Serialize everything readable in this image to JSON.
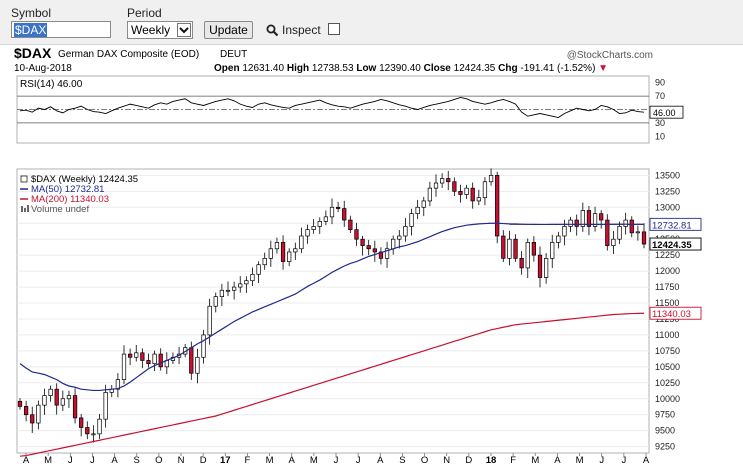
{
  "toolbar": {
    "symbol_label": "Symbol",
    "symbol_value": "$DAX",
    "period_label": "Period",
    "period_value": "Weekly",
    "update_label": "Update",
    "inspect_label": "Inspect"
  },
  "header": {
    "symbol": "$DAX",
    "name": "German DAX Composite (EOD)",
    "exchange": "DEUT",
    "date": "10-Aug-2018",
    "watermark": "@StockCharts.com",
    "ohlc_line": [
      {
        "label": "Open",
        "value": "12631.40"
      },
      {
        "label": "High",
        "value": "12738.53"
      },
      {
        "label": "Low",
        "value": "12390.40"
      },
      {
        "label": "Close",
        "value": "12424.35"
      },
      {
        "label": "Chg",
        "value": "-191.41 (-1.52%)"
      }
    ],
    "chg_arrow": "▼"
  },
  "chart_data": [
    {
      "type": "line",
      "title": "RSI(14) 46.00",
      "series": [
        {
          "name": "RSI(14)",
          "values": [
            48,
            49,
            46,
            52,
            50,
            54,
            48,
            45,
            50,
            52,
            55,
            50,
            47,
            46,
            44,
            48,
            52,
            55,
            58,
            56,
            54,
            52,
            57,
            60,
            58,
            62,
            64,
            66,
            60,
            58,
            56,
            59,
            62,
            64,
            66,
            63,
            58,
            55,
            53,
            58,
            60,
            57,
            55,
            53,
            52,
            56,
            58,
            60,
            62,
            64,
            60,
            57,
            55,
            54,
            52,
            55,
            58,
            60,
            62,
            65,
            63,
            60,
            57,
            55,
            52,
            50,
            53,
            56,
            58,
            60,
            62,
            65,
            68,
            66,
            62,
            60,
            58,
            60,
            63,
            65,
            62,
            58,
            46,
            40,
            42,
            44,
            42,
            40,
            38,
            44,
            48,
            52,
            50,
            48,
            50,
            56,
            54,
            50,
            44,
            45,
            49,
            47,
            46
          ]
        }
      ],
      "yticks": [
        10,
        30,
        50,
        70,
        90
      ],
      "ylim": [
        0,
        100
      ],
      "reference_lines": [
        30,
        50,
        70
      ],
      "last_value_label": "46.00"
    },
    {
      "type": "candlestick",
      "legend": [
        {
          "text": "$DAX (Weekly) 12424.35",
          "color": "#000000"
        },
        {
          "text": "MA(50) 12732.81",
          "color": "#1f2a8c"
        },
        {
          "text": "MA(200) 11340.03",
          "color": "#c8102e"
        },
        {
          "text": "Volume undef",
          "color": "#555555"
        }
      ],
      "close_series": [
        9880,
        9750,
        9620,
        9900,
        10050,
        10150,
        9900,
        10000,
        10050,
        9700,
        9550,
        9450,
        9450,
        9680,
        10100,
        10150,
        10300,
        10700,
        10650,
        10720,
        10600,
        10550,
        10700,
        10500,
        10600,
        10650,
        10700,
        10800,
        10400,
        10650,
        11000,
        11450,
        11600,
        11700,
        11700,
        11750,
        11800,
        11850,
        11950,
        12100,
        12200,
        12350,
        12450,
        12150,
        12300,
        12350,
        12550,
        12650,
        12700,
        12780,
        12850,
        13000,
        12980,
        12800,
        12650,
        12500,
        12400,
        12350,
        12300,
        12200,
        12350,
        12500,
        12550,
        12700,
        12900,
        13000,
        13100,
        13300,
        13380,
        13450,
        13400,
        13250,
        13200,
        13300,
        13100,
        13150,
        13400,
        13500,
        12550,
        12200,
        12500,
        12200,
        12050,
        12450,
        12250,
        11900,
        12200,
        12450,
        12550,
        12700,
        12800,
        12700,
        12950,
        12700,
        12900,
        12800,
        12400,
        12500,
        12700,
        12800,
        12600,
        12615,
        12424
      ],
      "ma50": [
        10550,
        10480,
        10420,
        10400,
        10380,
        10340,
        10300,
        10240,
        10200,
        10180,
        10150,
        10140,
        10130,
        10130,
        10140,
        10150,
        10160,
        10200,
        10260,
        10330,
        10400,
        10470,
        10520,
        10560,
        10600,
        10640,
        10680,
        10740,
        10800,
        10860,
        10910,
        10970,
        11030,
        11090,
        11150,
        11210,
        11260,
        11310,
        11360,
        11400,
        11440,
        11480,
        11520,
        11560,
        11600,
        11640,
        11700,
        11760,
        11810,
        11860,
        11920,
        11980,
        12030,
        12080,
        12120,
        12150,
        12190,
        12230,
        12260,
        12290,
        12320,
        12350,
        12380,
        12400,
        12430,
        12460,
        12500,
        12540,
        12580,
        12620,
        12650,
        12680,
        12700,
        12720,
        12730,
        12740,
        12745,
        12750,
        12750,
        12745,
        12740,
        12738,
        12735,
        12733,
        12732,
        12731,
        12731,
        12732,
        12732,
        12733,
        12733,
        12733,
        12733,
        12732,
        12732,
        12733,
        12733,
        12734,
        12735,
        12735,
        12733,
        12734,
        12733
      ],
      "ma200": [
        9100,
        9110,
        9130,
        9150,
        9170,
        9190,
        9210,
        9230,
        9250,
        9270,
        9290,
        9310,
        9330,
        9350,
        9370,
        9390,
        9410,
        9430,
        9450,
        9470,
        9490,
        9510,
        9530,
        9550,
        9570,
        9590,
        9610,
        9630,
        9650,
        9670,
        9690,
        9710,
        9730,
        9760,
        9790,
        9820,
        9850,
        9880,
        9910,
        9940,
        9970,
        10000,
        10030,
        10060,
        10090,
        10120,
        10150,
        10180,
        10210,
        10240,
        10270,
        10300,
        10330,
        10360,
        10390,
        10420,
        10450,
        10480,
        10510,
        10540,
        10570,
        10600,
        10630,
        10660,
        10690,
        10720,
        10750,
        10780,
        10810,
        10840,
        10870,
        10900,
        10930,
        10960,
        10990,
        11020,
        11050,
        11080,
        11100,
        11120,
        11140,
        11160,
        11170,
        11180,
        11190,
        11200,
        11210,
        11220,
        11230,
        11240,
        11250,
        11260,
        11270,
        11280,
        11290,
        11300,
        11310,
        11320,
        11325,
        11330,
        11335,
        11338,
        11340
      ],
      "yticks": [
        9250,
        9500,
        9750,
        10000,
        10250,
        10500,
        10750,
        11000,
        11250,
        11500,
        11750,
        12000,
        12250,
        12500,
        12750,
        13000,
        13250,
        13500
      ],
      "ylim": [
        9150,
        13600
      ],
      "x_month_labels": [
        "A",
        "M",
        "J",
        "J",
        "A",
        "S",
        "O",
        "N",
        "D",
        "17",
        "F",
        "M",
        "A",
        "M",
        "J",
        "J",
        "A",
        "S",
        "O",
        "N",
        "D",
        "18",
        "F",
        "M",
        "A",
        "M",
        "J",
        "J",
        "A"
      ],
      "price_tags": [
        {
          "text": "12732.81",
          "color": "#1f2a8c",
          "value": 12732.81
        },
        {
          "text": "12424.35",
          "color": "#000000",
          "value": 12424.35,
          "bold": true
        },
        {
          "text": "11340.03",
          "color": "#c8102e",
          "value": 11340.03
        }
      ],
      "reference_price": 12732.81
    }
  ]
}
